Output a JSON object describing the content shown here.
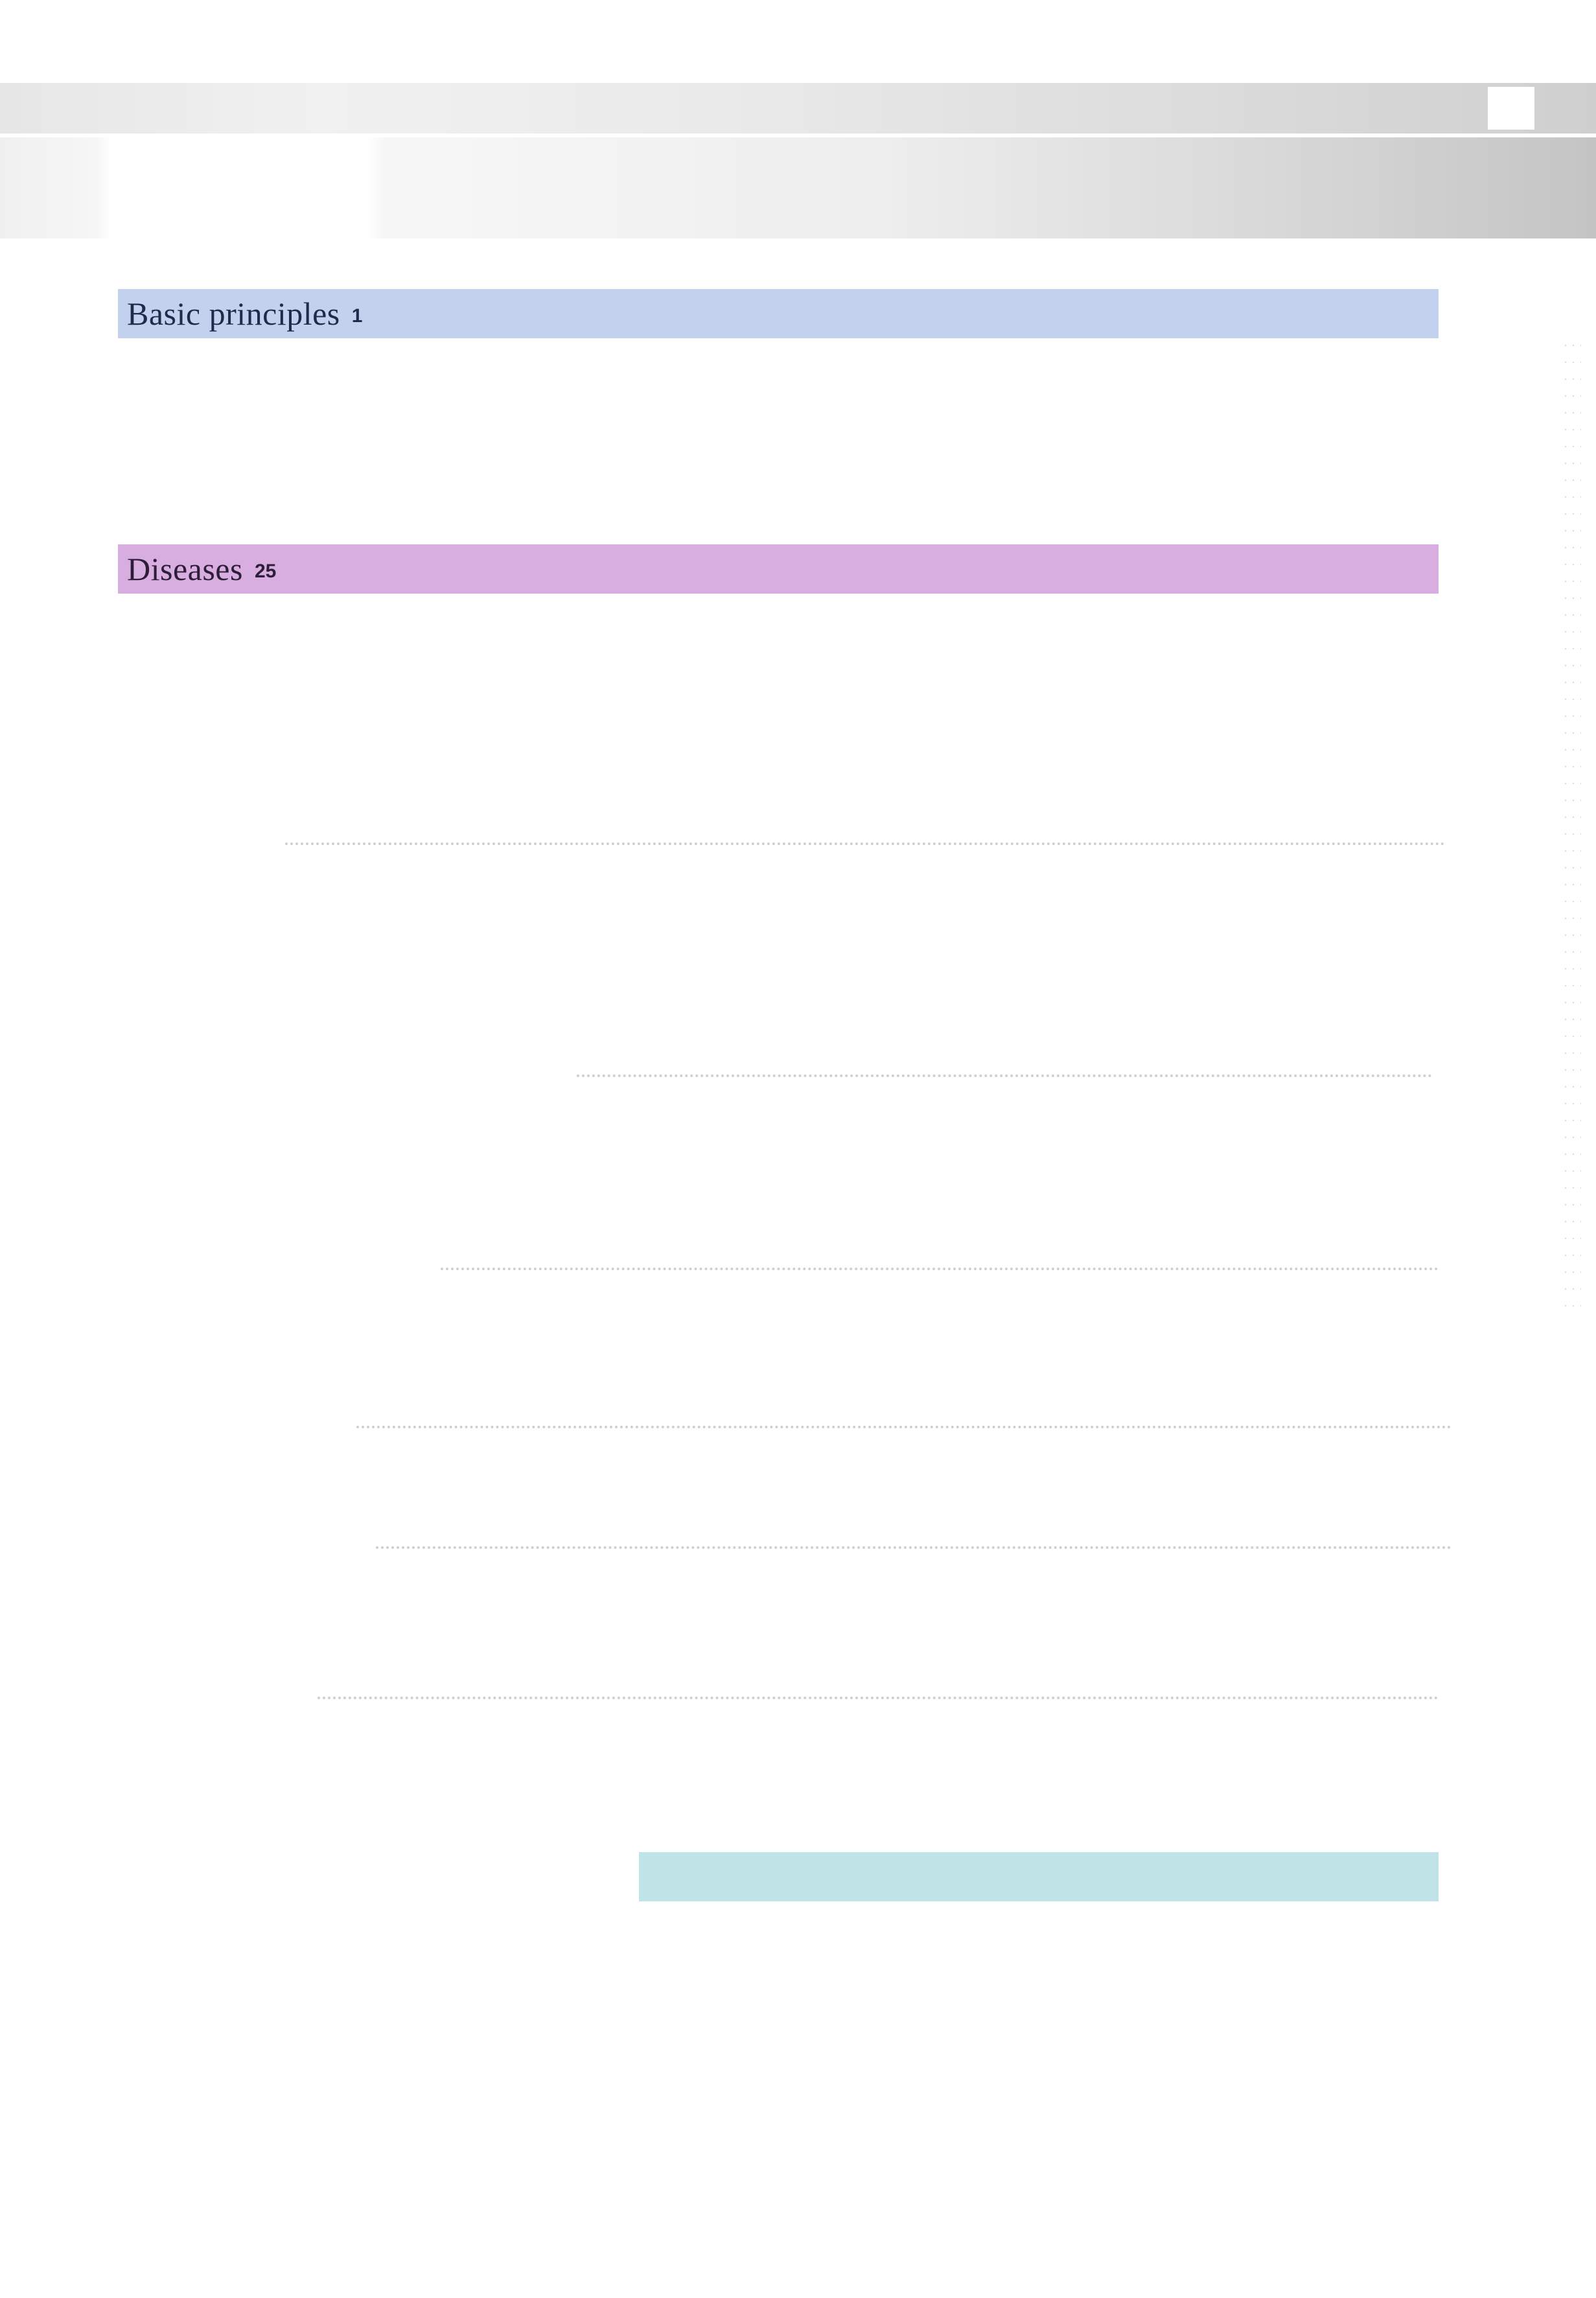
{
  "sections": [
    {
      "title": "Basic principles",
      "page": "1",
      "color": "#c3d1ef"
    },
    {
      "title": "Diseases",
      "page": "25",
      "color": "#d8aee0"
    }
  ],
  "teal_bar": {
    "color": "#c0e3e7"
  }
}
